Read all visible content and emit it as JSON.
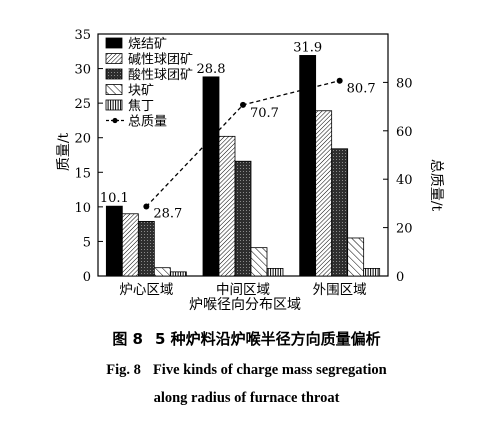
{
  "figure": {
    "caption_cn_num": "图 8",
    "caption_cn_text": "5 种炉料沿炉喉半径方向质量偏析",
    "caption_en_num": "Fig. 8",
    "caption_en_text1": "Five kinds of charge mass segregation",
    "caption_en_text2": "along radius of furnace throat"
  },
  "chart_data": {
    "type": "bar",
    "categories": [
      "炉心区域",
      "中间区域",
      "外围区域"
    ],
    "xlabel": "炉喉径向分布区域",
    "ylabel": "质量/t",
    "y2label": "总质量/t",
    "ylim": [
      0,
      35
    ],
    "yticks": [
      0,
      5,
      10,
      15,
      20,
      25,
      30,
      35
    ],
    "y2lim": [
      0,
      100
    ],
    "y2ticks": [
      0,
      20,
      40,
      60,
      80
    ],
    "legend_position": "top-left",
    "series": [
      {
        "name": "烧结矿",
        "values": [
          10.1,
          28.8,
          31.9
        ],
        "labels": [
          "10.1",
          "28.8",
          "31.9"
        ],
        "fill": "#000000",
        "pattern": "solid"
      },
      {
        "name": "碱性球团矿",
        "values": [
          9.0,
          20.2,
          23.9
        ],
        "fill": "#ffffff",
        "pattern": "diag-dense"
      },
      {
        "name": "酸性球团矿",
        "values": [
          7.9,
          16.6,
          18.4
        ],
        "fill": "#3a3a3a",
        "pattern": "crosshatch"
      },
      {
        "name": "块矿",
        "values": [
          1.2,
          4.1,
          5.5
        ],
        "fill": "#ffffff",
        "pattern": "diag-sparse"
      },
      {
        "name": "焦丁",
        "values": [
          0.6,
          1.1,
          1.1
        ],
        "fill": "#ffffff",
        "pattern": "vertical"
      }
    ],
    "line_series": {
      "name": "总质量",
      "axis": "right",
      "values": [
        28.7,
        70.7,
        80.7
      ],
      "labels": [
        "28.7",
        "70.7",
        "80.7"
      ]
    }
  }
}
